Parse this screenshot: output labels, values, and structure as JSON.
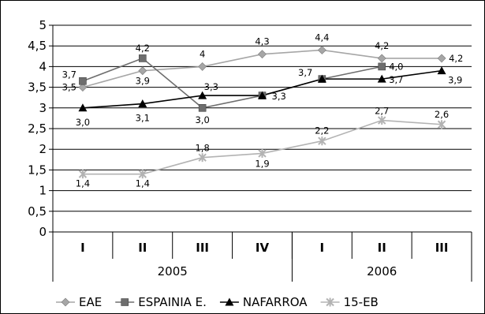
{
  "chart_data": {
    "type": "line",
    "categories": [
      "I",
      "II",
      "III",
      "IV",
      "I",
      "II",
      "III"
    ],
    "groups": [
      {
        "label": "2005",
        "span": 4
      },
      {
        "label": "2006",
        "span": 3
      }
    ],
    "y_ticks": [
      "0",
      "0,5",
      "1",
      "1,5",
      "2",
      "2,5",
      "3",
      "3,5",
      "4",
      "4,5",
      "5"
    ],
    "ylim": [
      0,
      5
    ],
    "grid": true,
    "legend": "bottom",
    "series": [
      {
        "name": "EAE",
        "color": "#a6a6a6",
        "marker": "diamond",
        "values": [
          3.5,
          3.9,
          4.0,
          4.3,
          4.4,
          4.2,
          4.2
        ],
        "labels": [
          "3,5",
          "3,9",
          "4",
          "4,3",
          "4,4",
          "4,2",
          "4,2"
        ]
      },
      {
        "name": "ESPAINIA E.",
        "color": "#6e6e6e",
        "marker": "square",
        "values": [
          3.65,
          4.2,
          3.0,
          3.3,
          3.7,
          4.0,
          null
        ],
        "labels": [
          "3,7",
          "4,2",
          null,
          null,
          "3,7",
          "4,0",
          null
        ]
      },
      {
        "name": "NAFARROA",
        "color": "#000000",
        "marker": "triangle",
        "values": [
          3.0,
          3.1,
          3.3,
          3.3,
          3.7,
          3.7,
          3.9
        ],
        "labels": [
          "3,0",
          "3,1",
          "3,3",
          "3,3",
          null,
          "3,7",
          "3,9"
        ]
      },
      {
        "name": "15-EB",
        "color": "#b3b3b3",
        "marker": "star",
        "values": [
          1.4,
          1.4,
          1.8,
          1.9,
          2.2,
          2.7,
          2.6
        ],
        "labels": [
          "1,4",
          "1,4",
          "1,8",
          "1,9",
          "2,2",
          "2,7",
          "2,6"
        ]
      }
    ],
    "extra_labels": [
      {
        "text": "3,0",
        "category_index": 2,
        "value": 3.0
      }
    ]
  }
}
